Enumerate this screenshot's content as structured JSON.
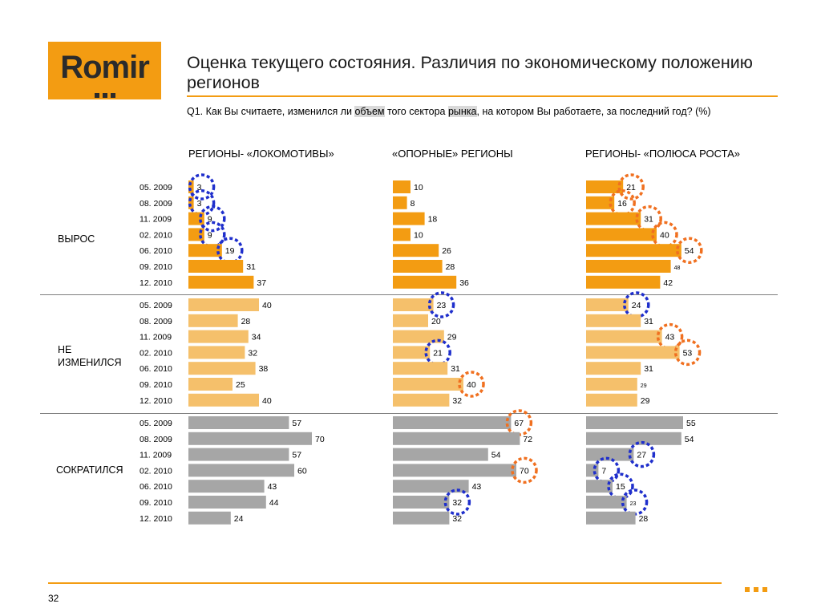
{
  "logo": {
    "text": "Romir"
  },
  "title": "Оценка текущего состояния. Различия по экономическому положению регионов",
  "question": {
    "part1": "Q1. Как Вы считаете, изменился ли ",
    "hl1": "объем",
    "part2": " того сектора ",
    "hl2": "рынка",
    "part3": ", на котором Вы работаете, за последний год? (%)"
  },
  "columns": [
    "РЕГИОНЫ- «ЛОКОМОТИВЫ»",
    "«ОПОРНЫЕ» РЕГИОНЫ",
    "РЕГИОНЫ- «ПОЛЮСА РОСТА»"
  ],
  "categories": [
    "ВЫРОС",
    "НЕ ИЗМЕНИЛСЯ",
    "СОКРАТИЛСЯ"
  ],
  "page_number": "32",
  "colors": {
    "grew": "#f39c12",
    "same": "#f5c06b",
    "shrank": "#a6a6a6",
    "circle_blue": "#1f2fcc",
    "circle_orange": "#f07020"
  },
  "chart_data": {
    "type": "bar",
    "periods": [
      "05. 2009",
      "08. 2009",
      "11. 2009",
      "02. 2010",
      "06. 2010",
      "09. 2010",
      "12. 2010"
    ],
    "series": [
      {
        "name": "ВЫРОС",
        "region": "РЕГИОНЫ- «ЛОКОМОТИВЫ»",
        "values": [
          3,
          3,
          9,
          9,
          19,
          31,
          37
        ],
        "circles": [
          "blue",
          "blue",
          "blue",
          "blue",
          "blue",
          null,
          null
        ]
      },
      {
        "name": "ВЫРОС",
        "region": "«ОПОРНЫЕ» РЕГИОНЫ",
        "values": [
          10,
          8,
          18,
          10,
          26,
          28,
          36
        ],
        "circles": [
          null,
          null,
          null,
          null,
          null,
          null,
          null
        ]
      },
      {
        "name": "ВЫРОС",
        "region": "РЕГИОНЫ- «ПОЛЮСА РОСТА»",
        "values": [
          21,
          16,
          31,
          40,
          54,
          48,
          42
        ],
        "circles": [
          "orange",
          "orange",
          "orange",
          "orange",
          "orange",
          null,
          null
        ]
      },
      {
        "name": "НЕ ИЗМЕНИЛСЯ",
        "region": "РЕГИОНЫ- «ЛОКОМОТИВЫ»",
        "values": [
          40,
          28,
          34,
          32,
          38,
          25,
          40
        ],
        "circles": [
          null,
          null,
          null,
          null,
          null,
          null,
          null
        ]
      },
      {
        "name": "НЕ ИЗМЕНИЛСЯ",
        "region": "«ОПОРНЫЕ» РЕГИОНЫ",
        "values": [
          23,
          20,
          29,
          21,
          31,
          40,
          32
        ],
        "circles": [
          "blue",
          null,
          null,
          "blue",
          null,
          "orange",
          null
        ]
      },
      {
        "name": "НЕ ИЗМЕНИЛСЯ",
        "region": "РЕГИОНЫ- «ПОЛЮСА РОСТА»",
        "values": [
          24,
          31,
          43,
          53,
          31,
          29,
          29
        ],
        "circles": [
          "blue",
          null,
          "orange",
          "orange",
          null,
          null,
          null
        ]
      },
      {
        "name": "СОКРАТИЛСЯ",
        "region": "РЕГИОНЫ- «ЛОКОМОТИВЫ»",
        "values": [
          57,
          70,
          57,
          60,
          43,
          44,
          24
        ],
        "circles": [
          null,
          null,
          null,
          null,
          null,
          null,
          null
        ]
      },
      {
        "name": "СОКРАТИЛСЯ",
        "region": "«ОПОРНЫЕ» РЕГИОНЫ",
        "values": [
          67,
          72,
          54,
          70,
          43,
          32,
          32
        ],
        "circles": [
          "orange",
          null,
          null,
          "orange",
          null,
          "blue",
          null
        ]
      },
      {
        "name": "СОКРАТИЛСЯ",
        "region": "РЕГИОНЫ- «ПОЛЮСА РОСТА»",
        "values": [
          55,
          54,
          27,
          7,
          15,
          23,
          28
        ],
        "circles": [
          null,
          null,
          "blue",
          "blue",
          "blue",
          "blue",
          null
        ]
      }
    ],
    "ylim": [
      0,
      100
    ]
  }
}
